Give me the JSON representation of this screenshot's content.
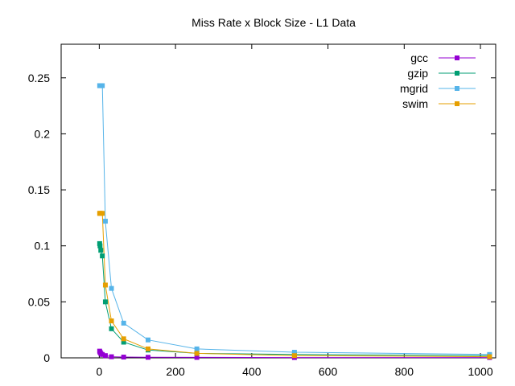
{
  "chart_data": {
    "type": "line",
    "title": "Miss Rate x Block Size - L1 Data",
    "xlabel": "",
    "ylabel": "",
    "xlim": [
      -100,
      1040
    ],
    "ylim": [
      0,
      0.28
    ],
    "xticks": [
      0,
      200,
      400,
      600,
      800,
      1000
    ],
    "xtick_labels": [
      "0",
      "200",
      "400",
      "600",
      "800",
      "1000"
    ],
    "yticks": [
      0,
      0.05,
      0.1,
      0.15,
      0.2,
      0.25
    ],
    "ytick_labels": [
      "0",
      "0.05",
      "0.1",
      "0.15",
      "0.2",
      "0.25"
    ],
    "grid": false,
    "legend_position": "top-right",
    "x": [
      1,
      2,
      4,
      8,
      16,
      32,
      64,
      128,
      256,
      512,
      1024
    ],
    "series": [
      {
        "name": "gcc",
        "color": "#9400d3",
        "values": [
          0.006,
          0.005,
          0.004,
          0.003,
          0.002,
          0.001,
          0.0007,
          0.0005,
          0.0004,
          0.0003,
          0.0003
        ]
      },
      {
        "name": "gzip",
        "color": "#009e73",
        "values": [
          0.102,
          0.1,
          0.096,
          0.091,
          0.05,
          0.026,
          0.014,
          0.007,
          0.004,
          0.003,
          0.002
        ]
      },
      {
        "name": "mgrid",
        "color": "#56b4e9",
        "values": [
          0.243,
          0.243,
          0.243,
          0.243,
          0.122,
          0.062,
          0.031,
          0.016,
          0.008,
          0.005,
          0.003
        ]
      },
      {
        "name": "swim",
        "color": "#e69f00",
        "values": [
          0.129,
          0.129,
          0.129,
          0.129,
          0.065,
          0.033,
          0.017,
          0.008,
          0.004,
          0.002,
          0.001
        ]
      }
    ]
  }
}
